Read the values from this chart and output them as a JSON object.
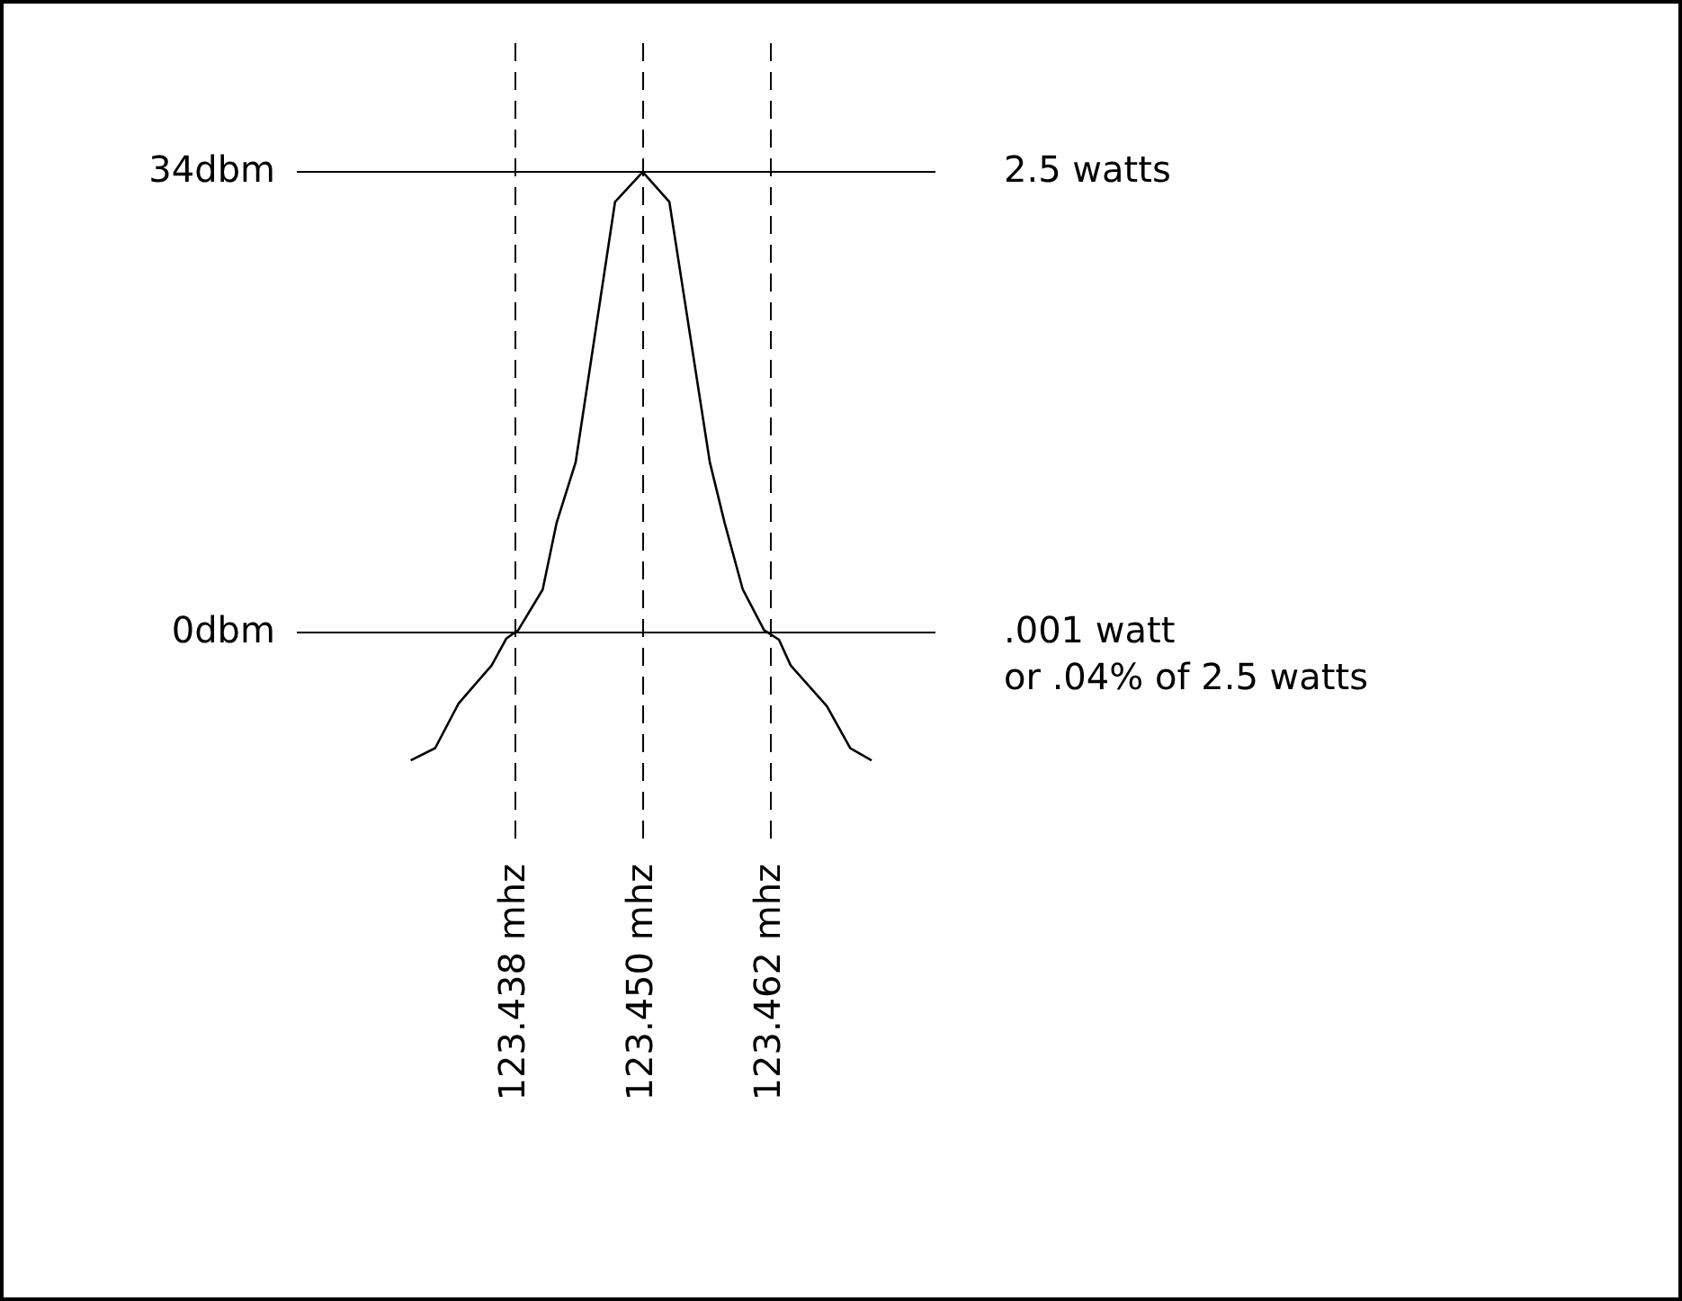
{
  "chart_data": {
    "type": "line",
    "grid": true,
    "legend": false,
    "marker": "none",
    "line_style": "solid",
    "xlim": [
      123.4175,
      123.4775
    ],
    "ylim": [
      -15.7,
      43.5
    ],
    "annotations": [
      "2.5 watts",
      ".001 watt\nor .04% of 2.5 watts"
    ],
    "xticks": [
      {
        "value": 123.438,
        "label": "123.438 mhz"
      },
      {
        "value": 123.45,
        "label": "123.450 mhz"
      },
      {
        "value": 123.462,
        "label": "123.462 mhz"
      }
    ],
    "yticks": [
      {
        "value": 34,
        "label": "34dbm"
      },
      {
        "value": 0,
        "label": "0dbm"
      }
    ],
    "x": [
      123.4282,
      123.4305,
      123.4327,
      123.4358,
      123.4372,
      123.4383,
      123.4406,
      123.4419,
      123.4437,
      123.4474,
      123.45,
      123.4525,
      123.4563,
      123.4577,
      123.4594,
      123.4614,
      123.4628,
      123.4639,
      123.4673,
      123.4695,
      123.4715
    ],
    "series": [
      {
        "color": "#000000",
        "values": [
          -9.4,
          -8.5,
          -5.2,
          -2.4,
          -0.4,
          0.2,
          3.2,
          8.1,
          12.6,
          31.8,
          34,
          31.8,
          12.6,
          8.1,
          3.2,
          0.2,
          -0.5,
          -2.4,
          -5.4,
          -8.5,
          -9.4
        ]
      }
    ]
  }
}
